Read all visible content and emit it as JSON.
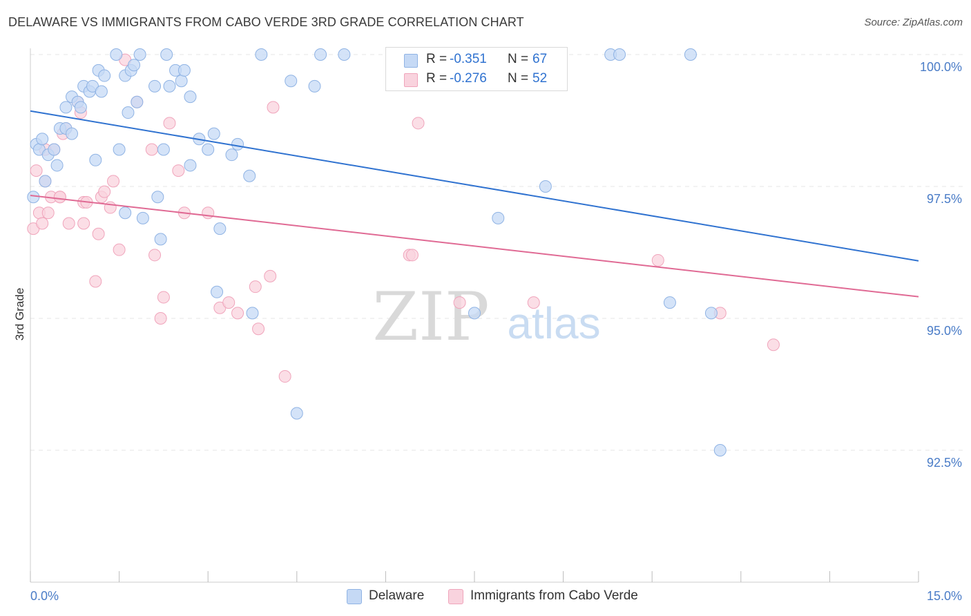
{
  "title": "DELAWARE VS IMMIGRANTS FROM CABO VERDE 3RD GRADE CORRELATION CHART",
  "source": "Source: ZipAtlas.com",
  "watermark": {
    "zip": "ZIP",
    "atlas": "atlas"
  },
  "legend": {
    "rows": [
      {
        "r_label": "R =",
        "r_value": "-0.351",
        "n_label": "N =",
        "n_value": "67"
      },
      {
        "r_label": "R =",
        "r_value": "-0.276",
        "n_label": "N =",
        "n_value": "52"
      }
    ]
  },
  "colors": {
    "delaware_fill": "#c5d9f5",
    "delaware_stroke": "#8fb3e4",
    "delaware_line": "#2f72d0",
    "cabo_fill": "#f9d3de",
    "cabo_stroke": "#f0a4bb",
    "cabo_line": "#e06a94",
    "axis_text": "#4a7cc7",
    "grid": "#e6e6e6"
  },
  "chart_data": {
    "type": "scatter",
    "title": "DELAWARE VS IMMIGRANTS FROM CABO VERDE 3RD GRADE CORRELATION CHART",
    "xlabel": "",
    "ylabel": "3rd Grade",
    "xlim": [
      0,
      15
    ],
    "ylim": [
      90.0,
      100.4
    ],
    "x_tick_labels": [
      "0.0%",
      "15.0%"
    ],
    "y_ticks": [
      92.5,
      95.0,
      97.5,
      100.0
    ],
    "y_tick_labels": [
      "92.5%",
      "95.0%",
      "97.5%",
      "100.0%"
    ],
    "grid": true,
    "legend_position": "top-center",
    "series": [
      {
        "name": "Delaware",
        "r": -0.351,
        "n": 67,
        "trend": {
          "x": [
            0.0,
            15.0
          ],
          "y": [
            98.93,
            96.09
          ]
        },
        "points": [
          [
            0.05,
            97.3
          ],
          [
            0.1,
            98.3
          ],
          [
            0.15,
            98.2
          ],
          [
            0.2,
            98.4
          ],
          [
            0.25,
            97.6
          ],
          [
            0.3,
            98.1
          ],
          [
            0.4,
            98.2
          ],
          [
            0.45,
            97.9
          ],
          [
            0.5,
            98.6
          ],
          [
            0.6,
            98.6
          ],
          [
            0.6,
            99.0
          ],
          [
            0.7,
            98.5
          ],
          [
            0.7,
            99.2
          ],
          [
            0.8,
            99.1
          ],
          [
            0.85,
            99.0
          ],
          [
            0.9,
            99.4
          ],
          [
            1.0,
            99.3
          ],
          [
            1.05,
            99.4
          ],
          [
            1.1,
            98.0
          ],
          [
            1.15,
            99.7
          ],
          [
            1.2,
            99.3
          ],
          [
            1.25,
            99.6
          ],
          [
            1.45,
            100.0
          ],
          [
            1.5,
            98.2
          ],
          [
            1.6,
            97.0
          ],
          [
            1.6,
            99.6
          ],
          [
            1.65,
            98.9
          ],
          [
            1.7,
            99.7
          ],
          [
            1.75,
            99.8
          ],
          [
            1.8,
            99.1
          ],
          [
            1.85,
            100.0
          ],
          [
            1.9,
            96.9
          ],
          [
            2.1,
            99.4
          ],
          [
            2.15,
            97.3
          ],
          [
            2.2,
            96.5
          ],
          [
            2.25,
            98.2
          ],
          [
            2.3,
            100.0
          ],
          [
            2.35,
            99.4
          ],
          [
            2.45,
            99.7
          ],
          [
            2.55,
            99.5
          ],
          [
            2.6,
            99.7
          ],
          [
            2.7,
            99.2
          ],
          [
            2.7,
            97.9
          ],
          [
            2.85,
            98.4
          ],
          [
            3.0,
            98.2
          ],
          [
            3.1,
            98.5
          ],
          [
            3.15,
            95.5
          ],
          [
            3.2,
            96.7
          ],
          [
            3.4,
            98.1
          ],
          [
            3.5,
            98.3
          ],
          [
            3.7,
            97.7
          ],
          [
            3.75,
            95.1
          ],
          [
            3.9,
            100.0
          ],
          [
            4.4,
            99.5
          ],
          [
            4.5,
            93.2
          ],
          [
            4.8,
            99.4
          ],
          [
            4.9,
            100.0
          ],
          [
            5.3,
            100.0
          ],
          [
            7.5,
            95.1
          ],
          [
            7.9,
            96.9
          ],
          [
            8.7,
            97.5
          ],
          [
            9.8,
            100.0
          ],
          [
            9.95,
            100.0
          ],
          [
            10.8,
            95.3
          ],
          [
            11.15,
            100.0
          ],
          [
            11.5,
            95.1
          ],
          [
            11.65,
            92.5
          ]
        ]
      },
      {
        "name": "Immigrants from Cabo Verde",
        "r": -0.276,
        "n": 52,
        "trend": {
          "x": [
            0.0,
            15.0
          ],
          "y": [
            97.33,
            95.41
          ]
        },
        "points": [
          [
            0.05,
            96.7
          ],
          [
            0.1,
            97.8
          ],
          [
            0.15,
            97.0
          ],
          [
            0.2,
            96.8
          ],
          [
            0.25,
            97.6
          ],
          [
            0.3,
            97.0
          ],
          [
            0.35,
            97.3
          ],
          [
            0.4,
            98.2
          ],
          [
            0.5,
            97.3
          ],
          [
            0.55,
            98.5
          ],
          [
            0.6,
            98.6
          ],
          [
            0.65,
            96.8
          ],
          [
            0.8,
            99.1
          ],
          [
            0.85,
            98.9
          ],
          [
            0.9,
            96.8
          ],
          [
            0.9,
            97.2
          ],
          [
            0.95,
            97.2
          ],
          [
            1.1,
            95.7
          ],
          [
            1.15,
            96.6
          ],
          [
            1.2,
            97.3
          ],
          [
            1.25,
            97.4
          ],
          [
            1.35,
            97.1
          ],
          [
            1.4,
            97.6
          ],
          [
            1.5,
            96.3
          ],
          [
            1.6,
            99.9
          ],
          [
            1.8,
            99.1
          ],
          [
            2.05,
            98.2
          ],
          [
            2.1,
            96.2
          ],
          [
            2.2,
            95.0
          ],
          [
            2.25,
            95.4
          ],
          [
            2.35,
            98.7
          ],
          [
            2.5,
            97.8
          ],
          [
            2.6,
            97.0
          ],
          [
            3.0,
            97.0
          ],
          [
            3.2,
            95.2
          ],
          [
            3.35,
            95.3
          ],
          [
            3.5,
            95.1
          ],
          [
            3.8,
            95.6
          ],
          [
            3.85,
            94.8
          ],
          [
            4.05,
            95.8
          ],
          [
            4.1,
            99.0
          ],
          [
            4.3,
            93.9
          ],
          [
            6.4,
            96.2
          ],
          [
            6.45,
            96.2
          ],
          [
            6.55,
            98.7
          ],
          [
            7.25,
            95.3
          ],
          [
            8.5,
            95.3
          ],
          [
            10.6,
            96.1
          ],
          [
            11.65,
            95.1
          ],
          [
            12.55,
            94.5
          ],
          [
            0.5,
            97.3
          ],
          [
            0.25,
            98.2
          ]
        ]
      }
    ]
  }
}
